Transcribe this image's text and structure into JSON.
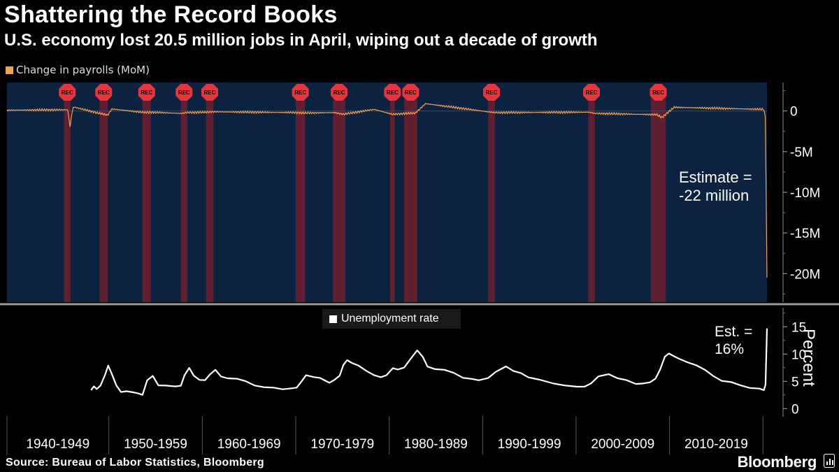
{
  "header": {
    "title": "Shattering the Record Books",
    "subtitle": "U.S. economy lost 20.5 million jobs in April, wiping out a decade of growth"
  },
  "footer": {
    "source": "Source: Bureau of Labor Statistics, Bloomberg",
    "brand": "Bloomberg"
  },
  "colors": {
    "payrolls": "#f5a04a",
    "unemployment": "#ffffff",
    "upper_panel_bg": "#0b2240",
    "recession": "#6e1f2e",
    "recession_marker": "#e8353b"
  },
  "chart_data": [
    {
      "type": "area",
      "series": [
        {
          "name": "Change in payrolls (MoM)",
          "unit": "M"
        }
      ],
      "x_range": [
        1939.0,
        2020.33
      ],
      "ylim": [
        -23.5,
        3.5
      ],
      "y_ticks": [
        0,
        -5,
        -10,
        -15,
        -20
      ],
      "y_tick_labels": [
        "0",
        "-5M",
        "-10M",
        "-15M",
        "-20M"
      ],
      "points": [
        [
          1939.0,
          0.1
        ],
        [
          1945.5,
          0.15
        ],
        [
          1945.75,
          -2.0
        ],
        [
          1945.9,
          -0.6
        ],
        [
          1946.1,
          0.5
        ],
        [
          1948.9,
          -0.3
        ],
        [
          1949.8,
          -0.5
        ],
        [
          1950.2,
          0.25
        ],
        [
          1953.8,
          -0.2
        ],
        [
          1954.3,
          -0.15
        ],
        [
          1957.7,
          -0.3
        ],
        [
          1958.2,
          -0.2
        ],
        [
          1960.4,
          -0.15
        ],
        [
          1960.9,
          -0.1
        ],
        [
          1970.0,
          -0.2
        ],
        [
          1970.8,
          -0.25
        ],
        [
          1974.0,
          -0.2
        ],
        [
          1975.0,
          -0.4
        ],
        [
          1978.3,
          0.2
        ],
        [
          1980.2,
          -0.4
        ],
        [
          1981.9,
          -0.3
        ],
        [
          1982.7,
          -0.25
        ],
        [
          1983.8,
          0.9
        ],
        [
          1990.8,
          -0.15
        ],
        [
          1991.2,
          -0.2
        ],
        [
          2001.3,
          -0.15
        ],
        [
          2001.9,
          -0.3
        ],
        [
          2008.5,
          -0.45
        ],
        [
          2009.1,
          -0.8
        ],
        [
          2009.6,
          -0.3
        ],
        [
          2010.4,
          0.45
        ],
        [
          2020.0,
          0.2
        ],
        [
          2020.16,
          -0.9
        ],
        [
          2020.33,
          -20.5
        ]
      ],
      "annotation": "Estimate =\n-22 million",
      "recession_label": "REC"
    },
    {
      "type": "line",
      "series": [
        {
          "name": "Unemployment rate",
          "unit": "Percent"
        }
      ],
      "ylabel": "Percent",
      "ylim": [
        -1.5,
        18.5
      ],
      "y_ticks": [
        0,
        5,
        10,
        15
      ],
      "y_tick_labels": [
        "0",
        "5",
        "10",
        "15"
      ],
      "points": [
        [
          1948.0,
          3.4
        ],
        [
          1948.3,
          4.0
        ],
        [
          1948.6,
          3.7
        ],
        [
          1949.0,
          4.3
        ],
        [
          1949.5,
          6.2
        ],
        [
          1949.83,
          7.9
        ],
        [
          1950.2,
          6.3
        ],
        [
          1950.7,
          4.3
        ],
        [
          1951.2,
          3.1
        ],
        [
          1951.8,
          3.3
        ],
        [
          1952.5,
          3.0
        ],
        [
          1953.0,
          2.7
        ],
        [
          1953.5,
          2.6
        ],
        [
          1954.0,
          5.2
        ],
        [
          1954.6,
          6.1
        ],
        [
          1955.2,
          4.3
        ],
        [
          1956.0,
          4.1
        ],
        [
          1957.0,
          4.1
        ],
        [
          1957.6,
          4.3
        ],
        [
          1958.0,
          6.2
        ],
        [
          1958.5,
          7.5
        ],
        [
          1959.0,
          5.9
        ],
        [
          1959.6,
          5.2
        ],
        [
          1960.2,
          5.3
        ],
        [
          1960.7,
          6.1
        ],
        [
          1961.3,
          7.1
        ],
        [
          1961.9,
          6.0
        ],
        [
          1962.6,
          5.5
        ],
        [
          1963.6,
          5.6
        ],
        [
          1964.5,
          5.1
        ],
        [
          1965.5,
          4.3
        ],
        [
          1966.5,
          3.8
        ],
        [
          1967.5,
          3.9
        ],
        [
          1968.5,
          3.6
        ],
        [
          1969.5,
          3.6
        ],
        [
          1970.0,
          3.9
        ],
        [
          1970.5,
          5.0
        ],
        [
          1971.0,
          6.0
        ],
        [
          1971.8,
          5.8
        ],
        [
          1972.5,
          5.5
        ],
        [
          1973.5,
          4.8
        ],
        [
          1974.0,
          5.1
        ],
        [
          1974.6,
          6.0
        ],
        [
          1975.0,
          8.1
        ],
        [
          1975.4,
          9.0
        ],
        [
          1975.9,
          8.3
        ],
        [
          1976.6,
          7.8
        ],
        [
          1977.5,
          6.9
        ],
        [
          1978.3,
          6.0
        ],
        [
          1979.0,
          5.8
        ],
        [
          1979.6,
          6.0
        ],
        [
          1980.3,
          7.5
        ],
        [
          1980.8,
          7.2
        ],
        [
          1981.5,
          7.4
        ],
        [
          1982.3,
          9.4
        ],
        [
          1982.9,
          10.8
        ],
        [
          1983.5,
          9.5
        ],
        [
          1984.0,
          7.8
        ],
        [
          1984.8,
          7.3
        ],
        [
          1985.8,
          7.0
        ],
        [
          1986.8,
          6.6
        ],
        [
          1987.8,
          5.7
        ],
        [
          1988.8,
          5.3
        ],
        [
          1989.5,
          5.2
        ],
        [
          1990.5,
          5.5
        ],
        [
          1991.3,
          6.8
        ],
        [
          1992.4,
          7.7
        ],
        [
          1993.2,
          7.0
        ],
        [
          1994.0,
          6.5
        ],
        [
          1994.8,
          5.6
        ],
        [
          1996.0,
          5.4
        ],
        [
          1997.5,
          4.7
        ],
        [
          1998.8,
          4.3
        ],
        [
          2000.0,
          4.0
        ],
        [
          2000.8,
          3.9
        ],
        [
          2001.5,
          4.6
        ],
        [
          2002.3,
          5.8
        ],
        [
          2003.4,
          6.2
        ],
        [
          2004.3,
          5.6
        ],
        [
          2005.3,
          5.1
        ],
        [
          2006.3,
          4.6
        ],
        [
          2007.0,
          4.5
        ],
        [
          2007.8,
          4.9
        ],
        [
          2008.4,
          5.6
        ],
        [
          2008.9,
          7.2
        ],
        [
          2009.4,
          9.4
        ],
        [
          2009.83,
          10.0
        ],
        [
          2010.4,
          9.6
        ],
        [
          2011.0,
          9.2
        ],
        [
          2011.8,
          8.5
        ],
        [
          2012.8,
          7.8
        ],
        [
          2013.7,
          7.0
        ],
        [
          2014.6,
          6.0
        ],
        [
          2015.5,
          5.2
        ],
        [
          2016.5,
          4.8
        ],
        [
          2017.5,
          4.2
        ],
        [
          2018.5,
          3.9
        ],
        [
          2019.5,
          3.6
        ],
        [
          2020.0,
          3.5
        ],
        [
          2020.17,
          4.4
        ],
        [
          2020.33,
          14.7
        ]
      ],
      "annotation": "Est. =\n16%"
    }
  ],
  "x_axis": {
    "labels": [
      "1940-1949",
      "1950-1959",
      "1960-1969",
      "1970-1979",
      "1980-1989",
      "1990-1999",
      "2000-2009",
      "2010-2019"
    ]
  },
  "recessions": [
    [
      1945.1,
      1945.8
    ],
    [
      1948.9,
      1949.8
    ],
    [
      1953.5,
      1954.4
    ],
    [
      1957.6,
      1958.3
    ],
    [
      1960.3,
      1961.1
    ],
    [
      1969.9,
      1970.9
    ],
    [
      1973.9,
      1975.2
    ],
    [
      1980.0,
      1980.5
    ],
    [
      1981.5,
      1982.9
    ],
    [
      1990.5,
      1991.2
    ],
    [
      2001.2,
      2001.9
    ],
    [
      2007.9,
      2009.5
    ]
  ]
}
